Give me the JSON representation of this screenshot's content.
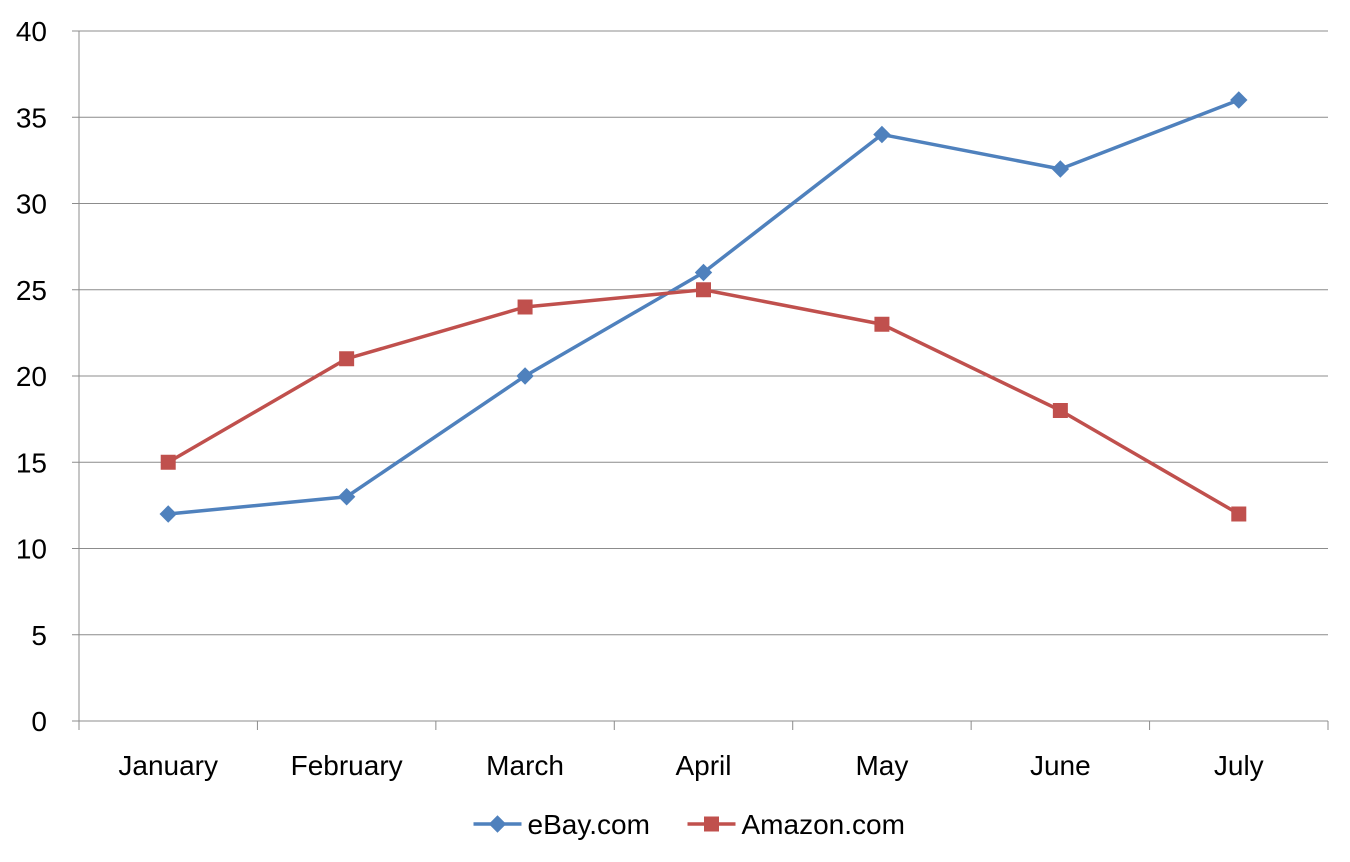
{
  "chart_data": {
    "type": "line",
    "title": "",
    "xlabel": "",
    "ylabel": "",
    "categories": [
      "January",
      "February",
      "March",
      "April",
      "May",
      "June",
      "July"
    ],
    "ylim": [
      0,
      40
    ],
    "yticks": [
      0,
      5,
      10,
      15,
      20,
      25,
      30,
      35,
      40
    ],
    "grid": "horizontal",
    "legend": "bottom",
    "series": [
      {
        "name": "eBay.com",
        "values": [
          12,
          13,
          20,
          26,
          34,
          32,
          36
        ],
        "color": "#4F81BD",
        "marker": "diamond"
      },
      {
        "name": "Amazon.com",
        "values": [
          15,
          21,
          24,
          25,
          23,
          18,
          12
        ],
        "color": "#C0504D",
        "marker": "square"
      }
    ]
  }
}
